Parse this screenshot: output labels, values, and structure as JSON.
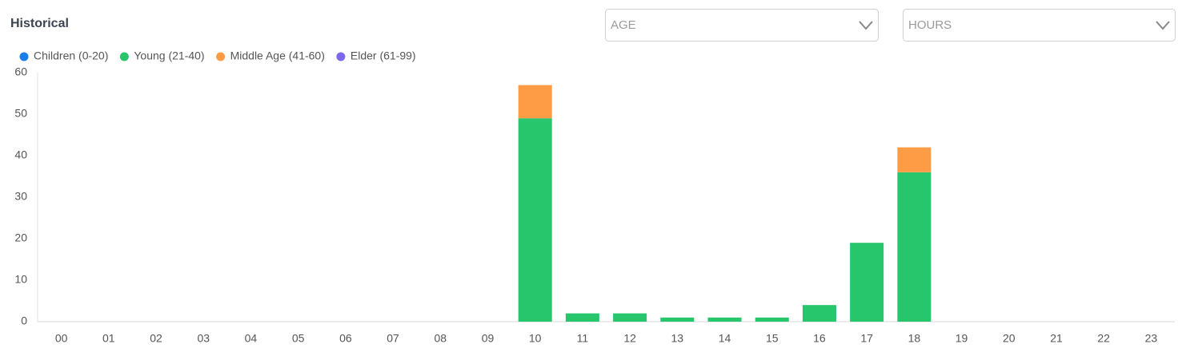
{
  "chart_data": {
    "type": "bar",
    "stacked": true,
    "title": "Historical",
    "filters": [
      {
        "placeholder": "AGE"
      },
      {
        "placeholder": "HOURS"
      }
    ],
    "categories": [
      "00",
      "01",
      "02",
      "03",
      "04",
      "05",
      "06",
      "07",
      "08",
      "09",
      "10",
      "11",
      "12",
      "13",
      "14",
      "15",
      "16",
      "17",
      "18",
      "19",
      "20",
      "21",
      "22",
      "23"
    ],
    "series": [
      {
        "name": "Children (0-20)",
        "color": "#1a7ee8",
        "values": [
          0,
          0,
          0,
          0,
          0,
          0,
          0,
          0,
          0,
          0,
          0,
          0,
          0,
          0,
          0,
          0,
          0,
          0,
          0,
          0,
          0,
          0,
          0,
          0
        ]
      },
      {
        "name": "Young (21-40)",
        "color": "#27c56c",
        "values": [
          0,
          0,
          0,
          0,
          0,
          0,
          0,
          0,
          0,
          0,
          49,
          2,
          2,
          1,
          1,
          1,
          4,
          19,
          36,
          0,
          0,
          0,
          0,
          0
        ]
      },
      {
        "name": "Middle Age (41-60)",
        "color": "#fd9c45",
        "values": [
          0,
          0,
          0,
          0,
          0,
          0,
          0,
          0,
          0,
          0,
          8,
          0,
          0,
          0,
          0,
          0,
          0,
          0,
          6,
          0,
          0,
          0,
          0,
          0
        ]
      },
      {
        "name": "Elder (61-99)",
        "color": "#7b68ee",
        "values": [
          0,
          0,
          0,
          0,
          0,
          0,
          0,
          0,
          0,
          0,
          0,
          0,
          0,
          0,
          0,
          0,
          0,
          0,
          0,
          0,
          0,
          0,
          0,
          0
        ]
      }
    ],
    "ylim": [
      0,
      60
    ],
    "yticks": [
      0,
      10,
      20,
      30,
      40,
      50,
      60
    ],
    "grid": false
  }
}
